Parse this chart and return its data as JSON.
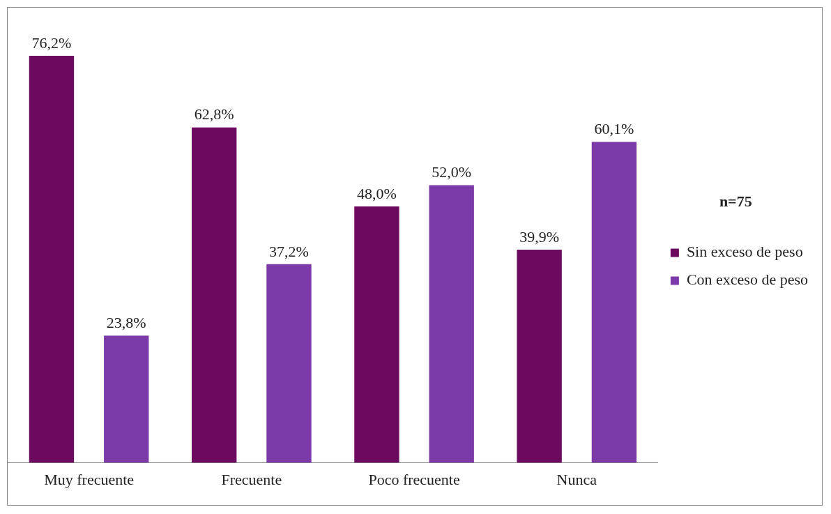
{
  "chart_data": {
    "type": "bar",
    "categories": [
      "Muy frecuente",
      "Frecuente",
      "Poco frecuente",
      "Nunca"
    ],
    "series": [
      {
        "name": "Sin exceso de peso",
        "color": "#6b0a5e",
        "values": [
          76.2,
          62.8,
          48.0,
          39.9
        ],
        "value_labels": [
          "76,2%",
          "62,8%",
          "48,0%",
          "39,9%"
        ]
      },
      {
        "name": "Con exceso de peso",
        "color": "#7b3aa8",
        "values": [
          23.8,
          37.2,
          52.0,
          60.1
        ],
        "value_labels": [
          "23,8%",
          "37,2%",
          "52,0%",
          "60,1%"
        ]
      }
    ],
    "annotations": [
      "n=75"
    ],
    "legend": "right",
    "grid": false
  }
}
